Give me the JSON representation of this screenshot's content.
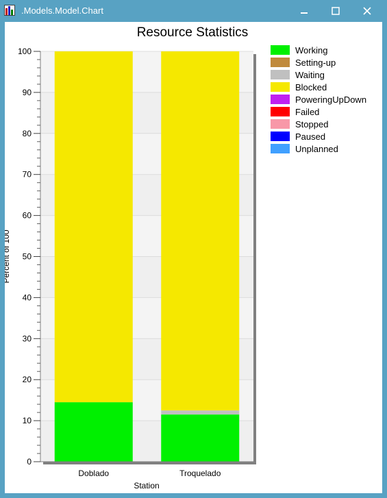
{
  "window": {
    "title": ".Models.Model.Chart",
    "icon": "bar-chart-app-icon",
    "buttons": [
      "minimize",
      "maximize",
      "close"
    ]
  },
  "colors": {
    "titlebar": "#58a2c3",
    "Working": "#00f000",
    "Setting-up": "#c08a3c",
    "Waiting": "#c0c0c0",
    "Blocked": "#f5e800",
    "PoweringUpDown": "#c020f0",
    "Failed": "#ff0000",
    "Stopped": "#f898a8",
    "Paused": "#0000ff",
    "Unplanned": "#40a0ff"
  },
  "chart_data": {
    "type": "bar",
    "stacked": true,
    "title": "Resource Statistics",
    "xlabel": "Station",
    "ylabel": "Percent of 100",
    "ylim": [
      0,
      100
    ],
    "yticks": [
      0,
      10,
      20,
      30,
      40,
      50,
      60,
      70,
      80,
      90,
      100
    ],
    "categories": [
      "Doblado",
      "Troquelado"
    ],
    "series": [
      {
        "name": "Working",
        "values": [
          14.5,
          11.5
        ]
      },
      {
        "name": "Setting-up",
        "values": [
          0,
          0
        ]
      },
      {
        "name": "Waiting",
        "values": [
          0,
          1.0
        ]
      },
      {
        "name": "Blocked",
        "values": [
          85.5,
          87.5
        ]
      },
      {
        "name": "PoweringUpDown",
        "values": [
          0,
          0
        ]
      },
      {
        "name": "Failed",
        "values": [
          0,
          0
        ]
      },
      {
        "name": "Stopped",
        "values": [
          0,
          0
        ]
      },
      {
        "name": "Paused",
        "values": [
          0,
          0
        ]
      },
      {
        "name": "Unplanned",
        "values": [
          0,
          0
        ]
      }
    ],
    "legend_position": "right",
    "grid": true
  }
}
